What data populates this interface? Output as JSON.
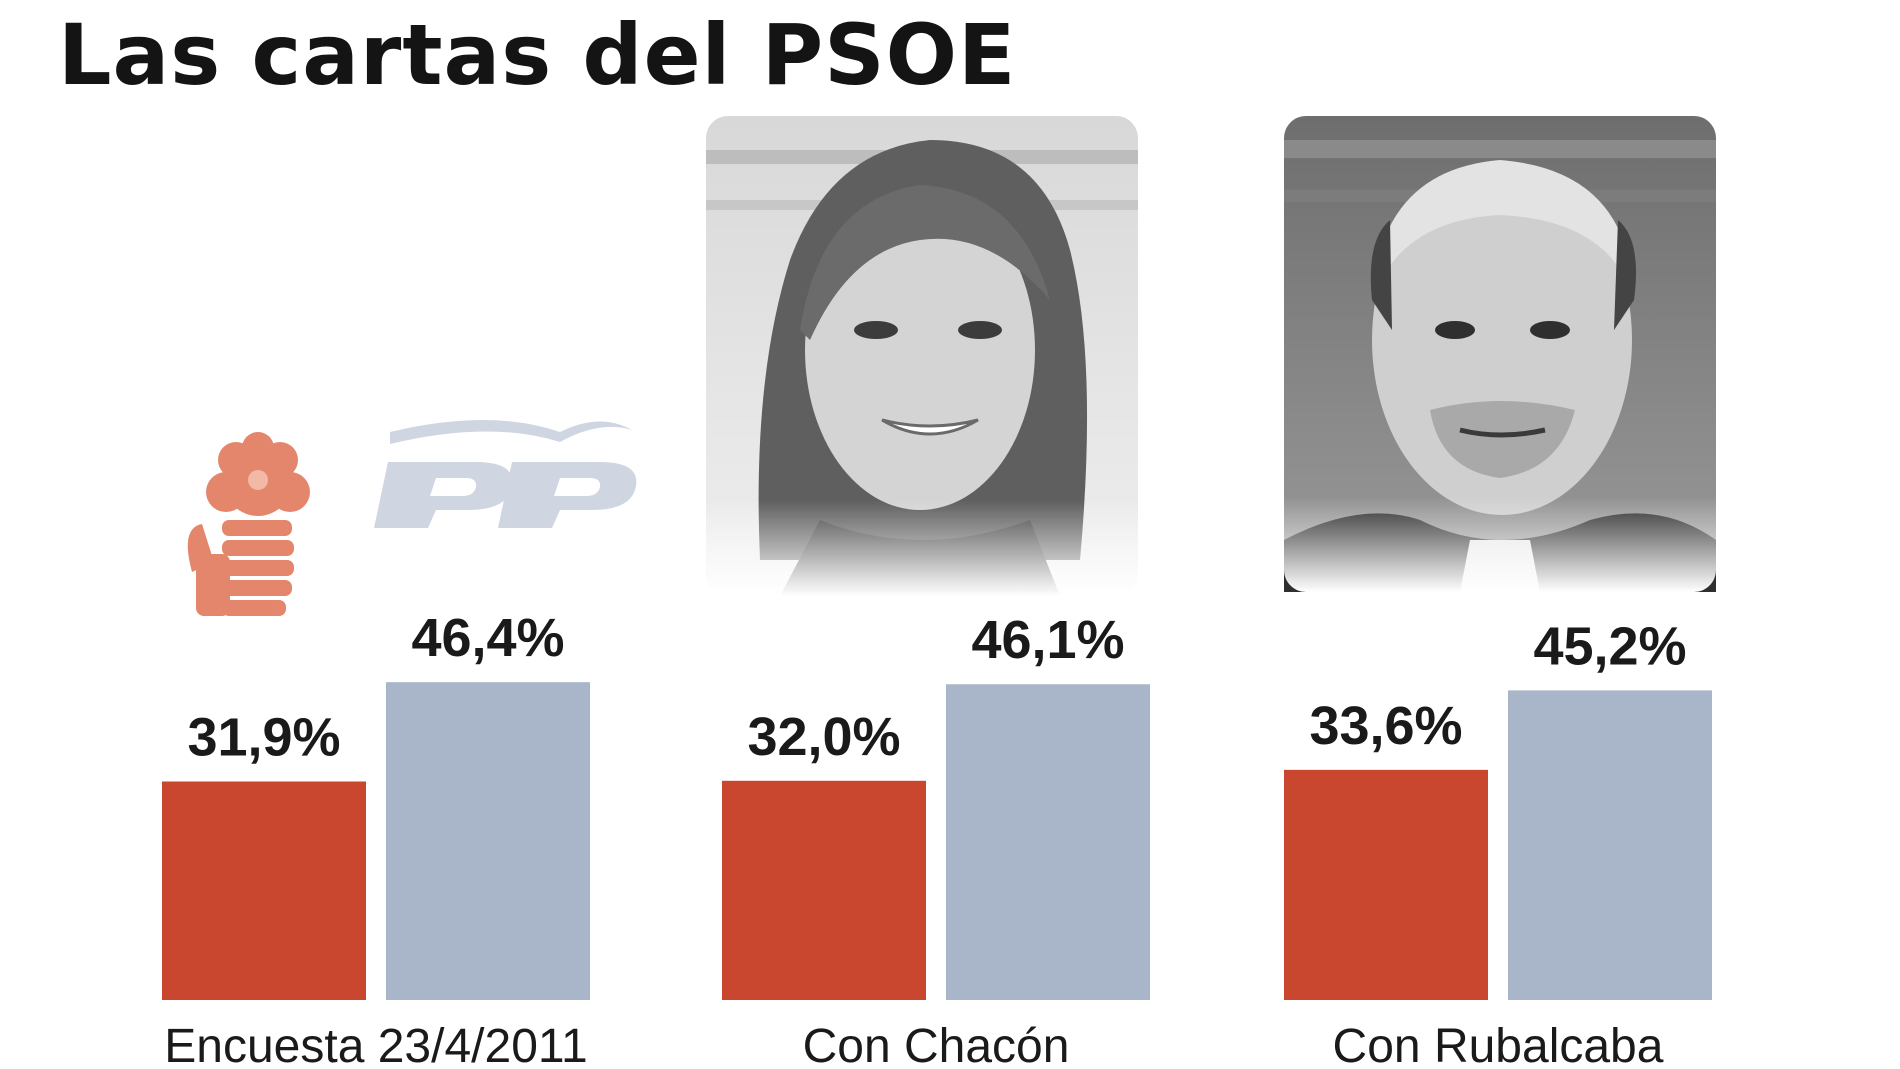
{
  "chart_data": {
    "type": "bar",
    "title": "Las cartas del PSOE",
    "categories": [
      "Encuesta 23/4/2011",
      "Con Chacón",
      "Con Rubalcaba"
    ],
    "series": [
      {
        "party": "PSOE",
        "values": [
          31.9,
          32.0,
          33.6
        ],
        "labels": [
          "31,9%",
          "32,0%",
          "33,6%"
        ],
        "color": "#c9472f"
      },
      {
        "party": "PP",
        "values": [
          46.4,
          46.1,
          45.2
        ],
        "labels": [
          "46,4%",
          "46,1%",
          "45,2%"
        ],
        "color": "#a9b6ca"
      }
    ],
    "ylim": [
      0,
      100
    ],
    "grid": false,
    "icons": [
      "psoe-rose-fist-logo",
      "pp-logo",
      "chacon-photo",
      "rubalcaba-photo"
    ]
  }
}
